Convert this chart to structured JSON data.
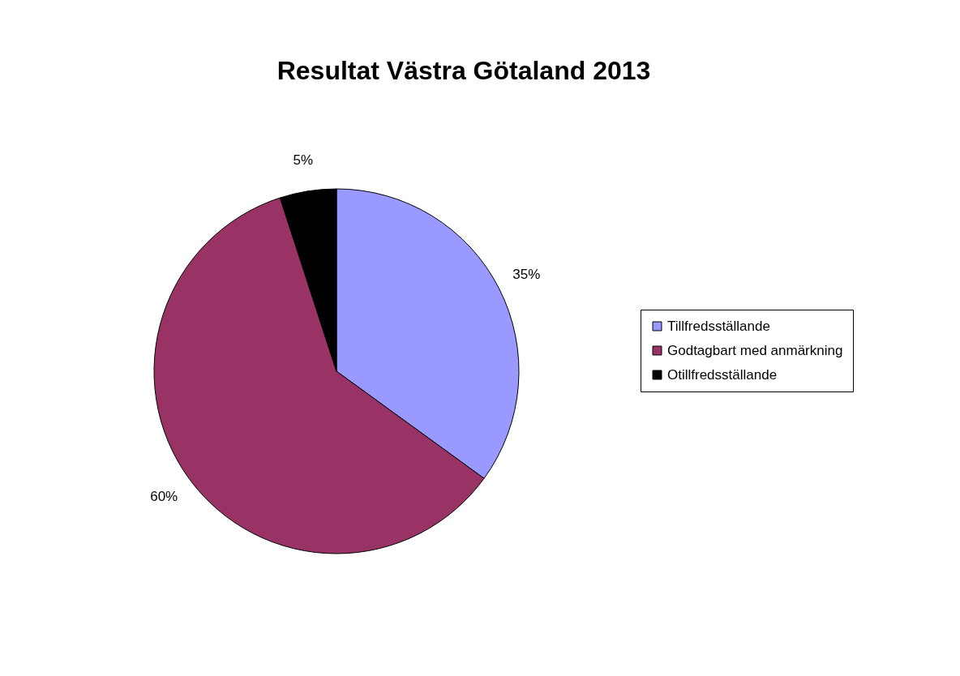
{
  "chart_data": {
    "type": "pie",
    "title": "Resultat Västra Götaland 2013",
    "categories": [
      "Tillfredsställande",
      "Godtagbart med anmärkning",
      "Otillfredsställande"
    ],
    "values": [
      35,
      60,
      5
    ],
    "colors": [
      "#9999ff",
      "#993366",
      "#000000"
    ],
    "value_labels": [
      "35%",
      "60%",
      "5%"
    ],
    "legend": "right"
  }
}
